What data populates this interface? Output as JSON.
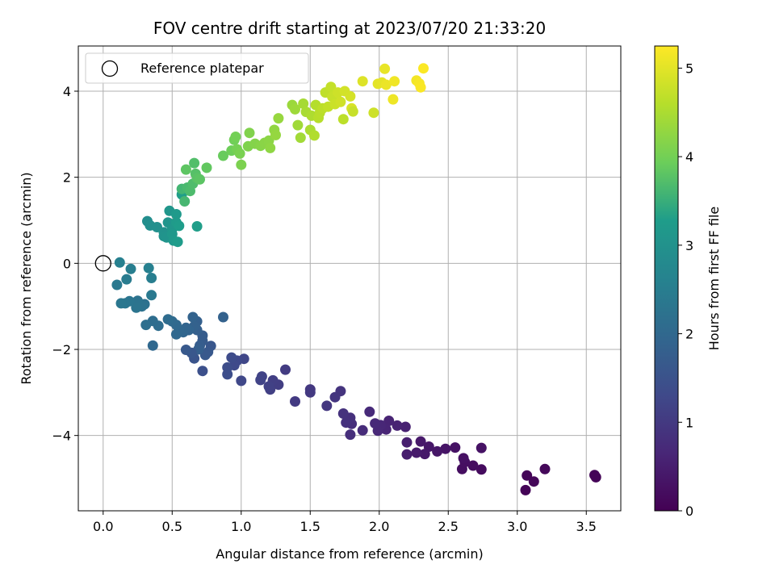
{
  "chart_data": {
    "type": "scatter",
    "title": "FOV centre drift starting at 2023/07/20 21:33:20",
    "xlabel": "Angular distance from reference (arcmin)",
    "ylabel": "Rotation from reference (arcmin)",
    "xlim": [
      -0.18,
      3.75
    ],
    "ylim": [
      -5.75,
      5.05
    ],
    "xticks": [
      0.0,
      0.5,
      1.0,
      1.5,
      2.0,
      2.5,
      3.0,
      3.5
    ],
    "xtick_labels": [
      "0.0",
      "0.5",
      "1.0",
      "1.5",
      "2.0",
      "2.5",
      "3.0",
      "3.5"
    ],
    "yticks": [
      -4,
      -2,
      0,
      2,
      4
    ],
    "ytick_labels": [
      "−4",
      "−2",
      "0",
      "2",
      "4"
    ],
    "grid": true,
    "legend": {
      "placement": "top-left",
      "entries": [
        "Reference platepar"
      ]
    },
    "reference_point": {
      "x": 0.0,
      "y": 0.0
    },
    "colorbar": {
      "label": "Hours from first FF file",
      "range": [
        0,
        5.25
      ],
      "ticks": [
        0,
        1,
        2,
        3,
        4,
        5
      ],
      "tick_labels": [
        "0",
        "1",
        "2",
        "3",
        "4",
        "5"
      ],
      "colormap": "viridis"
    },
    "colormap_stops": [
      "#440154",
      "#482777",
      "#3f4a8a",
      "#31678e",
      "#26838f",
      "#1f9d8a",
      "#6cce5a",
      "#b6de2b",
      "#fee825"
    ],
    "points": [
      [
        3.56,
        -4.92,
        0.05
      ],
      [
        3.57,
        -4.97,
        0.05
      ],
      [
        3.06,
        -5.27,
        0.06
      ],
      [
        3.07,
        -4.93,
        0.08
      ],
      [
        3.12,
        -5.07,
        0.1
      ],
      [
        3.2,
        -4.78,
        0.12
      ],
      [
        2.74,
        -4.79,
        0.18
      ],
      [
        2.68,
        -4.7,
        0.2
      ],
      [
        2.6,
        -4.78,
        0.22
      ],
      [
        2.62,
        -4.62,
        0.25
      ],
      [
        2.61,
        -4.53,
        0.28
      ],
      [
        2.55,
        -4.28,
        0.3
      ],
      [
        2.48,
        -4.31,
        0.33
      ],
      [
        2.42,
        -4.37,
        0.36
      ],
      [
        2.36,
        -4.26,
        0.38
      ],
      [
        2.33,
        -4.43,
        0.4
      ],
      [
        2.3,
        -4.14,
        0.42
      ],
      [
        2.27,
        -4.4,
        0.45
      ],
      [
        2.2,
        -4.44,
        0.48
      ],
      [
        2.2,
        -4.16,
        0.5
      ],
      [
        2.74,
        -4.29,
        0.3
      ],
      [
        2.19,
        -3.8,
        0.55
      ],
      [
        2.13,
        -3.77,
        0.58
      ],
      [
        2.07,
        -3.66,
        0.6
      ],
      [
        2.05,
        -3.86,
        0.62
      ],
      [
        2.01,
        -3.76,
        0.65
      ],
      [
        1.99,
        -3.89,
        0.67
      ],
      [
        1.97,
        -3.72,
        0.7
      ],
      [
        1.93,
        -3.45,
        0.72
      ],
      [
        1.88,
        -3.88,
        0.75
      ],
      [
        1.8,
        -3.73,
        0.78
      ],
      [
        1.79,
        -3.98,
        0.8
      ],
      [
        1.79,
        -3.59,
        0.82
      ],
      [
        1.76,
        -3.7,
        0.85
      ],
      [
        1.74,
        -3.49,
        0.87
      ],
      [
        1.72,
        -2.97,
        0.9
      ],
      [
        1.68,
        -3.11,
        0.92
      ],
      [
        1.62,
        -3.31,
        0.95
      ],
      [
        1.5,
        -2.93,
        0.98
      ],
      [
        1.5,
        -3.0,
        1.0
      ],
      [
        1.39,
        -3.21,
        1.02
      ],
      [
        1.32,
        -2.47,
        1.05
      ],
      [
        1.27,
        -2.82,
        1.08
      ],
      [
        1.23,
        -2.72,
        1.1
      ],
      [
        1.21,
        -2.93,
        1.12
      ],
      [
        1.2,
        -2.86,
        1.15
      ],
      [
        1.15,
        -2.63,
        1.18
      ],
      [
        1.14,
        -2.71,
        1.2
      ],
      [
        1.02,
        -2.22,
        1.25
      ],
      [
        1.0,
        -2.73,
        1.27
      ],
      [
        0.97,
        -2.26,
        1.3
      ],
      [
        0.95,
        -2.37,
        1.32
      ],
      [
        0.93,
        -2.19,
        1.35
      ],
      [
        0.9,
        -2.42,
        1.38
      ],
      [
        0.9,
        -2.58,
        1.4
      ],
      [
        0.87,
        -1.25,
        1.85
      ],
      [
        0.78,
        -1.92,
        1.6
      ],
      [
        0.76,
        -2.06,
        1.62
      ],
      [
        0.74,
        -2.13,
        1.65
      ],
      [
        0.72,
        -2.5,
        1.45
      ],
      [
        0.72,
        -1.8,
        1.7
      ],
      [
        0.72,
        -1.68,
        1.72
      ],
      [
        0.7,
        -1.91,
        1.75
      ],
      [
        0.69,
        -2.0,
        1.78
      ],
      [
        0.68,
        -1.55,
        1.8
      ],
      [
        0.68,
        -1.35,
        1.82
      ],
      [
        0.66,
        -2.21,
        1.55
      ],
      [
        0.66,
        -1.46,
        1.85
      ],
      [
        0.65,
        -1.25,
        1.88
      ],
      [
        0.64,
        -2.08,
        1.6
      ],
      [
        0.62,
        -1.55,
        1.9
      ],
      [
        0.6,
        -1.5,
        1.92
      ],
      [
        0.6,
        -2.01,
        1.65
      ],
      [
        0.58,
        -1.6,
        1.95
      ],
      [
        0.55,
        -1.55,
        1.98
      ],
      [
        0.53,
        -1.65,
        2.0
      ],
      [
        0.53,
        -1.43,
        2.02
      ],
      [
        0.5,
        -1.35,
        2.05
      ],
      [
        0.47,
        -1.3,
        2.08
      ],
      [
        0.4,
        -1.45,
        2.1
      ],
      [
        0.36,
        -1.34,
        2.12
      ],
      [
        0.36,
        -1.91,
        2.0
      ],
      [
        0.31,
        -1.43,
        2.15
      ],
      [
        0.3,
        -0.95,
        2.2
      ],
      [
        0.28,
        -1.0,
        2.22
      ],
      [
        0.25,
        -0.87,
        2.25
      ],
      [
        0.24,
        -1.03,
        2.28
      ],
      [
        0.19,
        -0.88,
        2.3
      ],
      [
        0.16,
        -0.93,
        2.32
      ],
      [
        0.13,
        -0.93,
        2.35
      ],
      [
        0.1,
        -0.5,
        2.4
      ],
      [
        0.17,
        -0.37,
        2.45
      ],
      [
        0.2,
        -0.13,
        2.5
      ],
      [
        0.12,
        0.02,
        2.55
      ],
      [
        0.35,
        -0.74,
        2.4
      ],
      [
        0.35,
        -0.34,
        2.5
      ],
      [
        0.33,
        -0.11,
        2.55
      ],
      [
        0.32,
        0.98,
        2.9
      ],
      [
        0.34,
        0.88,
        2.92
      ],
      [
        0.39,
        0.84,
        2.95
      ],
      [
        0.44,
        0.72,
        3.0
      ],
      [
        0.44,
        0.63,
        3.02
      ],
      [
        0.46,
        0.6,
        3.05
      ],
      [
        0.47,
        0.95,
        3.08
      ],
      [
        0.48,
        1.22,
        3.1
      ],
      [
        0.5,
        0.8,
        3.12
      ],
      [
        0.5,
        0.68,
        3.15
      ],
      [
        0.51,
        0.53,
        3.18
      ],
      [
        0.53,
        1.14,
        3.2
      ],
      [
        0.53,
        0.95,
        3.22
      ],
      [
        0.54,
        0.5,
        3.25
      ],
      [
        0.55,
        0.87,
        3.28
      ],
      [
        0.57,
        1.6,
        3.3
      ],
      [
        0.68,
        0.86,
        3.3
      ],
      [
        0.57,
        1.73,
        3.6
      ],
      [
        0.59,
        1.44,
        3.62
      ],
      [
        0.61,
        1.76,
        3.65
      ],
      [
        0.63,
        1.68,
        3.68
      ],
      [
        0.65,
        1.85,
        3.7
      ],
      [
        0.66,
        2.33,
        3.72
      ],
      [
        0.67,
        2.08,
        3.75
      ],
      [
        0.68,
        1.98,
        3.78
      ],
      [
        0.7,
        1.95,
        3.8
      ],
      [
        0.6,
        2.18,
        3.82
      ],
      [
        0.75,
        2.22,
        3.85
      ],
      [
        0.87,
        2.5,
        3.9
      ],
      [
        0.93,
        2.62,
        3.95
      ],
      [
        0.95,
        2.87,
        3.97
      ],
      [
        0.96,
        2.94,
        4.0
      ],
      [
        0.97,
        2.65,
        4.02
      ],
      [
        0.99,
        2.55,
        4.05
      ],
      [
        1.0,
        2.29,
        4.08
      ],
      [
        1.05,
        2.72,
        4.1
      ],
      [
        1.06,
        3.03,
        4.12
      ],
      [
        1.1,
        2.78,
        4.15
      ],
      [
        1.14,
        2.73,
        4.18
      ],
      [
        1.17,
        2.8,
        4.2
      ],
      [
        1.2,
        2.85,
        4.22
      ],
      [
        1.21,
        2.68,
        4.25
      ],
      [
        1.24,
        3.1,
        4.27
      ],
      [
        1.25,
        2.98,
        4.3
      ],
      [
        1.27,
        3.37,
        4.32
      ],
      [
        1.37,
        3.68,
        4.35
      ],
      [
        1.39,
        3.58,
        4.38
      ],
      [
        1.41,
        3.21,
        4.4
      ],
      [
        1.43,
        2.92,
        4.42
      ],
      [
        1.45,
        3.71,
        4.45
      ],
      [
        1.47,
        3.52,
        4.48
      ],
      [
        1.5,
        3.1,
        4.5
      ],
      [
        1.51,
        3.43,
        4.52
      ],
      [
        1.53,
        2.97,
        4.55
      ],
      [
        1.54,
        3.68,
        4.58
      ],
      [
        1.56,
        3.38,
        4.6
      ],
      [
        1.57,
        3.5,
        4.62
      ],
      [
        1.59,
        3.6,
        4.65
      ],
      [
        1.61,
        3.97,
        4.68
      ],
      [
        1.63,
        3.64,
        4.7
      ],
      [
        1.65,
        4.1,
        4.72
      ],
      [
        1.66,
        3.87,
        4.75
      ],
      [
        1.68,
        3.7,
        4.78
      ],
      [
        1.7,
        3.97,
        4.8
      ],
      [
        1.72,
        3.75,
        4.82
      ],
      [
        1.74,
        3.35,
        4.65
      ],
      [
        1.75,
        4.0,
        4.85
      ],
      [
        1.79,
        3.88,
        4.87
      ],
      [
        1.8,
        3.6,
        4.9
      ],
      [
        1.81,
        3.53,
        4.75
      ],
      [
        1.88,
        4.23,
        4.95
      ],
      [
        1.96,
        3.5,
        4.8
      ],
      [
        1.99,
        4.17,
        5.0
      ],
      [
        2.02,
        4.2,
        5.02
      ],
      [
        2.04,
        4.52,
        5.05
      ],
      [
        2.05,
        4.15,
        5.08
      ],
      [
        2.1,
        3.81,
        5.1
      ],
      [
        2.11,
        4.23,
        5.12
      ],
      [
        2.27,
        4.25,
        5.15
      ],
      [
        2.29,
        4.18,
        5.18
      ],
      [
        2.3,
        4.09,
        5.2
      ],
      [
        2.32,
        4.53,
        5.22
      ]
    ]
  }
}
